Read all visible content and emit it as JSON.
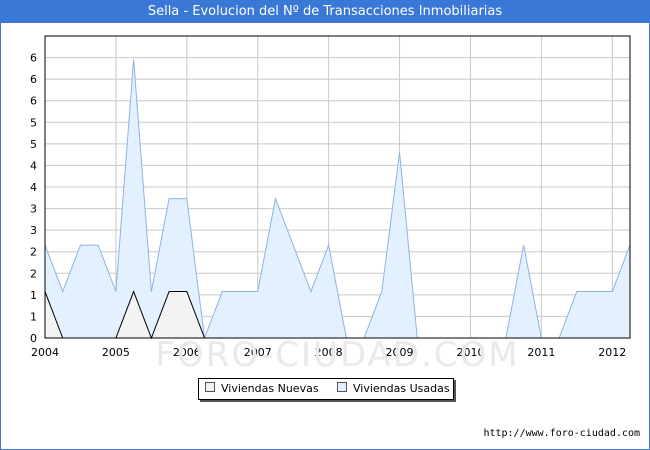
{
  "title": "Sella - Evolucion del Nº de Transacciones Inmobiliarias",
  "footer_url": "http://www.foro-ciudad.com",
  "watermark": "FORO-CIUDAD.COM",
  "colors": {
    "title_bg": "#3a78d8",
    "nuevas_fill": "#f3f3f3",
    "nuevas_line": "#000000",
    "usadas_fill": "#e3f0fd",
    "usadas_line": "#8fb2e6",
    "grid": "#c8c8c8"
  },
  "chart_data": {
    "type": "area",
    "x_tick_labels": [
      "2004",
      "2005",
      "2006",
      "2007",
      "2008",
      "2009",
      "2010",
      "2011",
      "2012"
    ],
    "y_tick_labels": [
      "0",
      "1",
      "1",
      "2",
      "2",
      "3",
      "3",
      "4",
      "4",
      "5",
      "5",
      "6",
      "6",
      "6"
    ],
    "ylim": [
      0,
      6.5
    ],
    "xlim": [
      2004.0,
      2012.25
    ],
    "grid": true,
    "legend_position": "bottom-center",
    "x": [
      2004.0,
      2004.25,
      2004.5,
      2004.75,
      2005.0,
      2005.25,
      2005.5,
      2005.75,
      2006.0,
      2006.25,
      2006.5,
      2006.75,
      2007.0,
      2007.25,
      2007.5,
      2007.75,
      2008.0,
      2008.25,
      2008.5,
      2008.75,
      2009.0,
      2009.25,
      2009.5,
      2009.75,
      2010.0,
      2010.25,
      2010.5,
      2010.75,
      2011.0,
      2011.25,
      2011.5,
      2011.75,
      2012.0,
      2012.25
    ],
    "series": [
      {
        "name": "Viviendas Nuevas",
        "values": [
          1,
          0,
          0,
          0,
          0,
          1,
          0,
          1,
          1,
          0,
          0,
          0,
          0,
          0,
          0,
          0,
          0,
          0,
          0,
          0,
          0,
          0,
          0,
          0,
          0,
          0,
          0,
          0,
          0,
          0,
          0,
          0,
          0,
          0
        ]
      },
      {
        "name": "Viviendas Usadas",
        "values": [
          2,
          1,
          2,
          2,
          1,
          6,
          1,
          3,
          3,
          0,
          1,
          1,
          1,
          3,
          2,
          1,
          2,
          0,
          0,
          1,
          4,
          0,
          0,
          0,
          0,
          0,
          0,
          2,
          0,
          0,
          1,
          1,
          1,
          2
        ]
      }
    ]
  }
}
